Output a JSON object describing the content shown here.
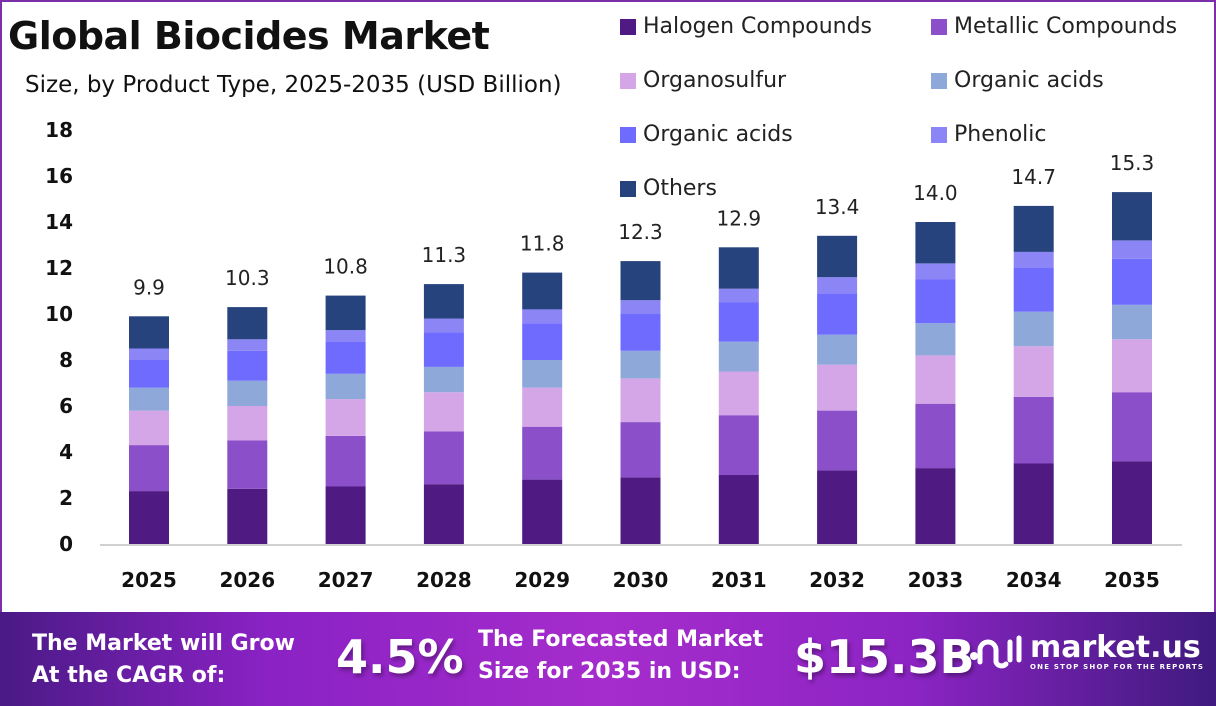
{
  "header": {
    "title": "Global Biocides Market",
    "subtitle": "Size, by Product Type, 2025-2035 (USD Billion)"
  },
  "chart_data": {
    "type": "bar",
    "stacked": true,
    "title": "Global Biocides Market",
    "subtitle": "Size, by Product Type, 2025-2035 (USD Billion)",
    "xlabel": "",
    "ylabel": "",
    "ylim": [
      0,
      18
    ],
    "yticks": [
      0,
      2,
      4,
      6,
      8,
      10,
      12,
      14,
      16,
      18
    ],
    "grid": false,
    "legend_position": "top-right",
    "categories": [
      "2025",
      "2026",
      "2027",
      "2028",
      "2029",
      "2030",
      "2031",
      "2032",
      "2033",
      "2034",
      "2035"
    ],
    "totals": [
      9.9,
      10.3,
      10.8,
      11.3,
      11.8,
      12.3,
      12.9,
      13.4,
      14.0,
      14.7,
      15.3
    ],
    "total_labels": [
      "9.9",
      "10.3",
      "10.8",
      "11.3",
      "11.8",
      "12.3",
      "12.9",
      "13.4",
      "14.0",
      "14.7",
      "15.3"
    ],
    "series": [
      {
        "name": "Halogen Compounds",
        "color": "#4f1a82",
        "values": [
          2.3,
          2.4,
          2.5,
          2.6,
          2.8,
          2.9,
          3.0,
          3.2,
          3.3,
          3.5,
          3.6
        ]
      },
      {
        "name": "Metallic Compounds",
        "color": "#8b4fc9",
        "values": [
          2.0,
          2.1,
          2.2,
          2.3,
          2.3,
          2.4,
          2.6,
          2.6,
          2.8,
          2.9,
          3.0
        ]
      },
      {
        "name": "Organosulfur",
        "color": "#d4a6e8",
        "values": [
          1.5,
          1.5,
          1.6,
          1.7,
          1.7,
          1.9,
          1.9,
          2.0,
          2.1,
          2.2,
          2.3
        ]
      },
      {
        "name": "Organic acids",
        "color": "#8ea8da",
        "values": [
          1.0,
          1.1,
          1.1,
          1.1,
          1.2,
          1.2,
          1.3,
          1.3,
          1.4,
          1.5,
          1.5
        ]
      },
      {
        "name": "Organic acids",
        "color": "#6f6bff",
        "values": [
          1.2,
          1.3,
          1.4,
          1.5,
          1.6,
          1.6,
          1.7,
          1.8,
          1.9,
          1.9,
          2.0
        ]
      },
      {
        "name": "Phenolic",
        "color": "#8c85f6",
        "values": [
          0.5,
          0.5,
          0.5,
          0.6,
          0.6,
          0.6,
          0.6,
          0.7,
          0.7,
          0.7,
          0.8
        ]
      },
      {
        "name": "Others",
        "color": "#26437e",
        "values": [
          1.4,
          1.4,
          1.5,
          1.5,
          1.6,
          1.7,
          1.8,
          1.8,
          1.8,
          2.0,
          2.1
        ]
      }
    ]
  },
  "banner": {
    "cagr_text_line1": "The Market will Grow",
    "cagr_text_line2": "At the CAGR of:",
    "cagr_value": "4.5%",
    "forecast_text_line1": "The Forecasted Market",
    "forecast_text_line2": "Size for 2035 in USD:",
    "forecast_value": "$15.3B",
    "logo_name": "market.us",
    "logo_tagline": "ONE STOP SHOP FOR THE REPORTS"
  }
}
